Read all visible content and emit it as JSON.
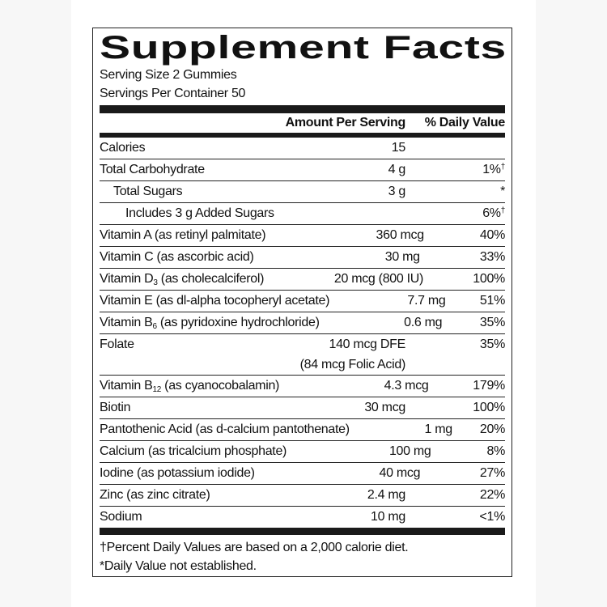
{
  "title": "Supplement Facts",
  "serving_size": "Serving Size 2 Gummies",
  "servings_per_container": "Servings Per Container 50",
  "header": {
    "amount": "Amount Per Serving",
    "dv": "% Daily Value"
  },
  "rows": [
    {
      "name": "Calories",
      "amount": "15",
      "dv": ""
    },
    {
      "name": "Total Carbohydrate",
      "amount": "4 g",
      "dv": "1%",
      "dv_mark": "†"
    },
    {
      "name": "Total Sugars",
      "amount": "3 g",
      "dv": "*",
      "indent": 1
    },
    {
      "name": "Includes 3 g Added Sugars",
      "amount": "",
      "dv": "6%",
      "dv_mark": "†",
      "indent": 2
    },
    {
      "name": "Vitamin A (as retinyl palmitate)",
      "amount": "360 mcg",
      "dv": "40%"
    },
    {
      "name": "Vitamin C (as ascorbic acid)",
      "amount": "30 mg",
      "dv": "33%"
    },
    {
      "name": "Vitamin D",
      "sub": "3",
      "name_rest": " (as cholecalciferol)",
      "amount": "20 mcg (800 IU)",
      "dv": "100%"
    },
    {
      "name": "Vitamin E (as dl-alpha tocopheryl acetate)",
      "amount": "7.7 mg",
      "dv": "51%"
    },
    {
      "name": "Vitamin B",
      "sub": "6",
      "name_rest": " (as pyridoxine hydrochloride)",
      "amount": "0.6 mg",
      "dv": "35%"
    },
    {
      "name": "Folate",
      "amount": "140 mcg DFE",
      "amount2": "(84 mcg Folic Acid)",
      "dv": "35%"
    },
    {
      "name": "Vitamin B",
      "sub": "12",
      "name_rest": " (as cyanocobalamin)",
      "amount": "4.3 mcg",
      "dv": "179%"
    },
    {
      "name": "Biotin",
      "amount": "30 mcg",
      "dv": "100%"
    },
    {
      "name": "Pantothenic Acid (as d-calcium pantothenate)",
      "amount": "1 mg",
      "dv": "20%"
    },
    {
      "name": "Calcium (as tricalcium phosphate)",
      "amount": "100 mg",
      "dv": "8%"
    },
    {
      "name": "Iodine (as potassium iodide)",
      "amount": "40 mcg",
      "dv": "27%"
    },
    {
      "name": "Zinc (as zinc citrate)",
      "amount": "2.4 mg",
      "dv": "22%"
    },
    {
      "name": "Sodium",
      "amount": "10 mg",
      "dv": "<1%"
    }
  ],
  "footnotes": [
    "†Percent Daily Values are based on a 2,000 calorie diet.",
    "*Daily Value not established."
  ]
}
